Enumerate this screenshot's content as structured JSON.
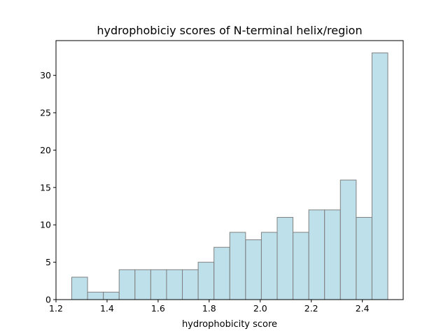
{
  "chart_data": {
    "type": "bar",
    "title": "hydrophobiciy scores of N-terminal helix/region",
    "xlabel": "hydrophobicity score",
    "ylabel": "",
    "bin_edges": [
      1.2617,
      1.3236,
      1.3855,
      1.4474,
      1.5093,
      1.5712,
      1.6331,
      1.695,
      1.7569,
      1.8188,
      1.8807,
      1.9426,
      2.0045,
      2.0664,
      2.1283,
      2.1902,
      2.2521,
      2.314,
      2.3759,
      2.4378,
      2.4997
    ],
    "values": [
      3,
      1,
      1,
      4,
      4,
      4,
      4,
      4,
      5,
      7,
      9,
      8,
      9,
      11,
      9,
      12,
      12,
      16,
      11,
      33
    ],
    "xlim": [
      1.2,
      2.56
    ],
    "ylim": [
      0,
      34.65
    ],
    "xticks": [
      1.2,
      1.4,
      1.6,
      1.8,
      2.0,
      2.2,
      2.4
    ],
    "xtick_labels": [
      "1.2",
      "1.4",
      "1.6",
      "1.8",
      "2.0",
      "2.2",
      "2.4"
    ],
    "yticks": [
      0,
      5,
      10,
      15,
      20,
      25,
      30
    ],
    "ytick_labels": [
      "0",
      "5",
      "10",
      "15",
      "20",
      "25",
      "30"
    ],
    "bar_color": "#add8e6",
    "bar_edge_color": "#808080",
    "grid": false,
    "legend": "none"
  }
}
